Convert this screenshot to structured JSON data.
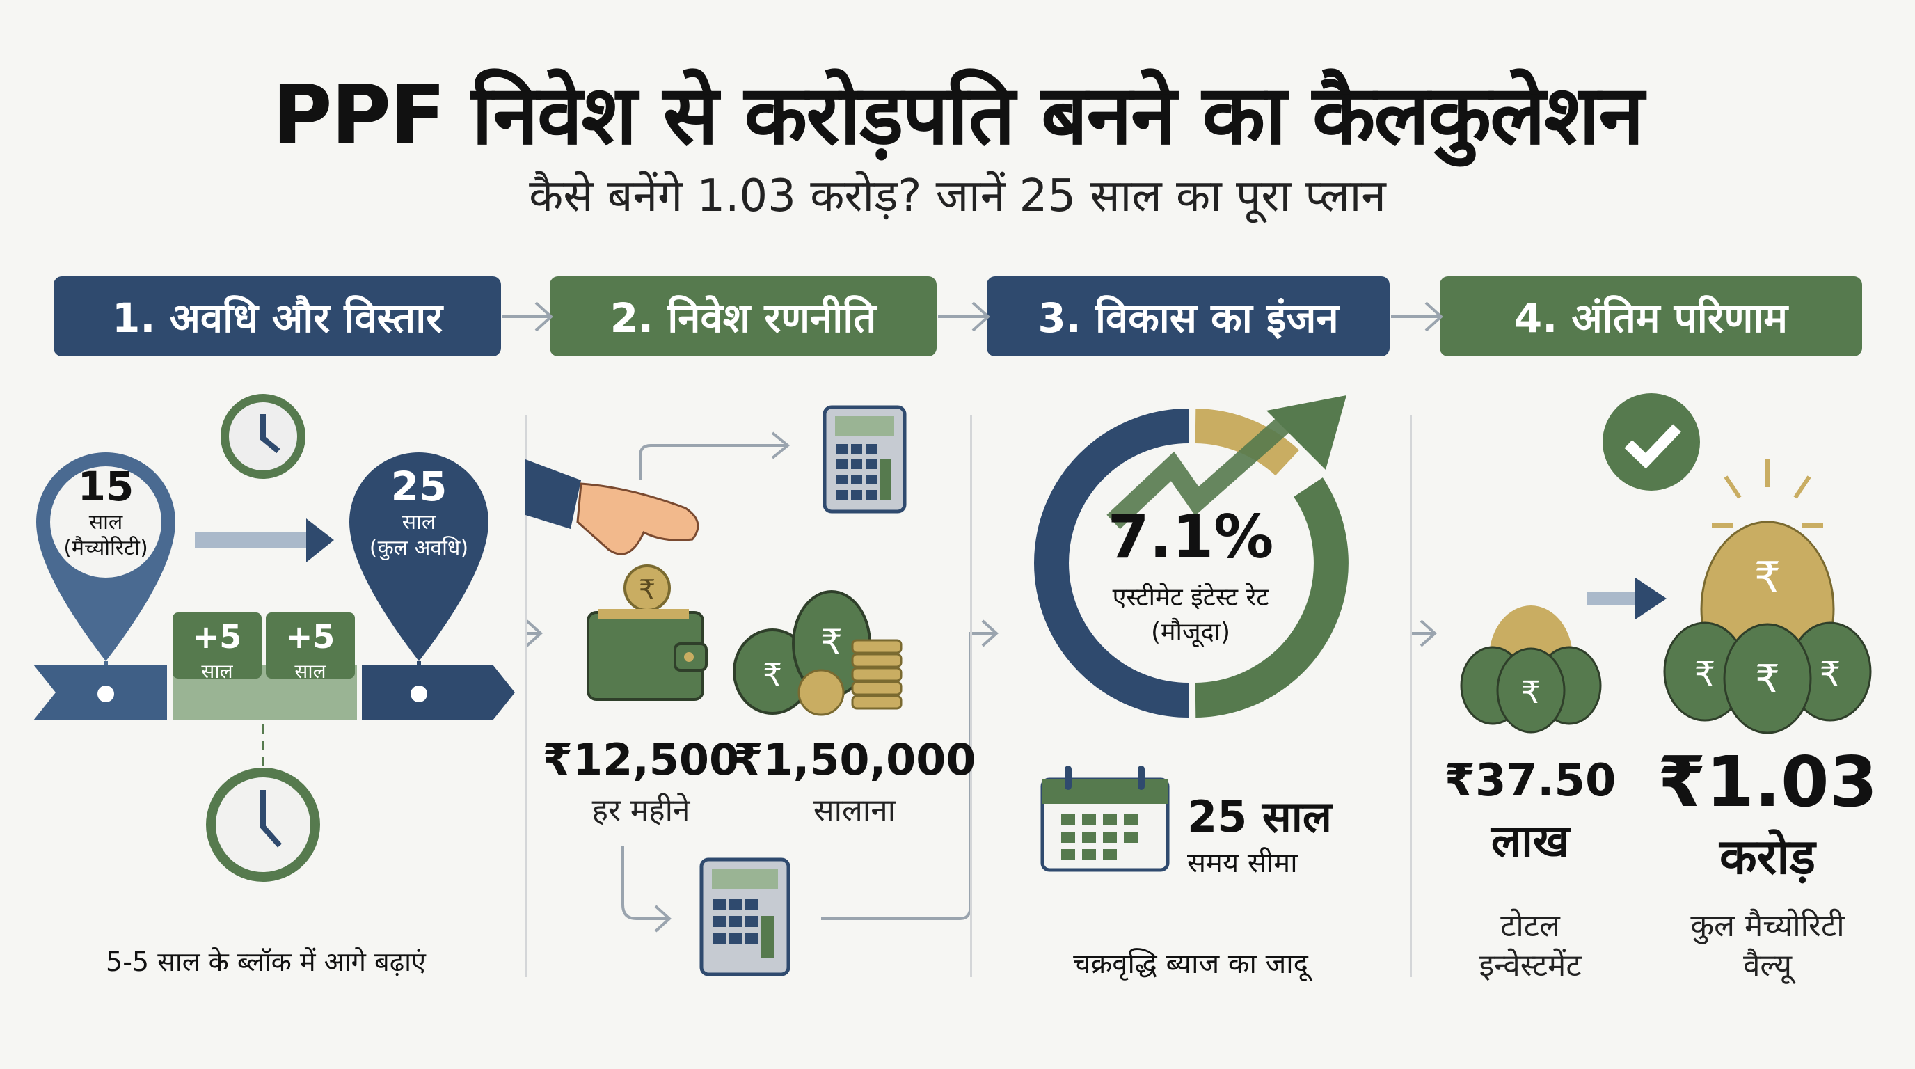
{
  "title": "PPF निवेश से करोड़पति बनने का कैलकुलेशन",
  "subtitle": "कैसे बनेंगे 1.03 करोड़? जानें 25 साल का पूरा प्लान",
  "steps": [
    {
      "label": "1. अवधि और विस्तार",
      "color": "#2f4a6e"
    },
    {
      "label": "2. निवेश रणनीति",
      "color": "#567a4e"
    },
    {
      "label": "3. विकास का इंजन",
      "color": "#2f4a6e"
    },
    {
      "label": "4. अंतिम परिणाम",
      "color": "#567a4e"
    }
  ],
  "col1": {
    "pin1": {
      "value": "15",
      "unit": "साल",
      "note": "(मैच्योरिटी)"
    },
    "pin2": {
      "value": "25",
      "unit": "साल",
      "note": "(कुल अवधि)"
    },
    "blocks": [
      {
        "value": "+5",
        "unit": "साल"
      },
      {
        "value": "+5",
        "unit": "साल"
      }
    ],
    "caption": "5-5 साल के ब्लॉक में आगे बढ़ाएं"
  },
  "col2": {
    "monthly": {
      "amount": "₹12,500",
      "label": "हर महीने"
    },
    "yearly": {
      "amount": "₹1,50,000",
      "label": "सालाना"
    }
  },
  "col3": {
    "rate": "7.1%",
    "rate_label": "एस्टीमेट इंटेस्ट रेट",
    "rate_note": "(मौजूदा)",
    "period": "25 साल",
    "period_label": "समय सीमा",
    "caption": "चक्रवृद्धि ब्याज का जादू"
  },
  "col4": {
    "invested": {
      "amount": "₹37.50",
      "unit": "लाख",
      "label1": "टोटल",
      "label2": "इन्वेस्टमेंट"
    },
    "maturity": {
      "amount": "₹1.03",
      "unit": "करोड़",
      "label1": "कुल मैच्योरिटी",
      "label2": "वैल्यू"
    }
  },
  "colors": {
    "blue": "#2f4a6e",
    "green": "#567a4e",
    "gold": "#c9ad62"
  }
}
